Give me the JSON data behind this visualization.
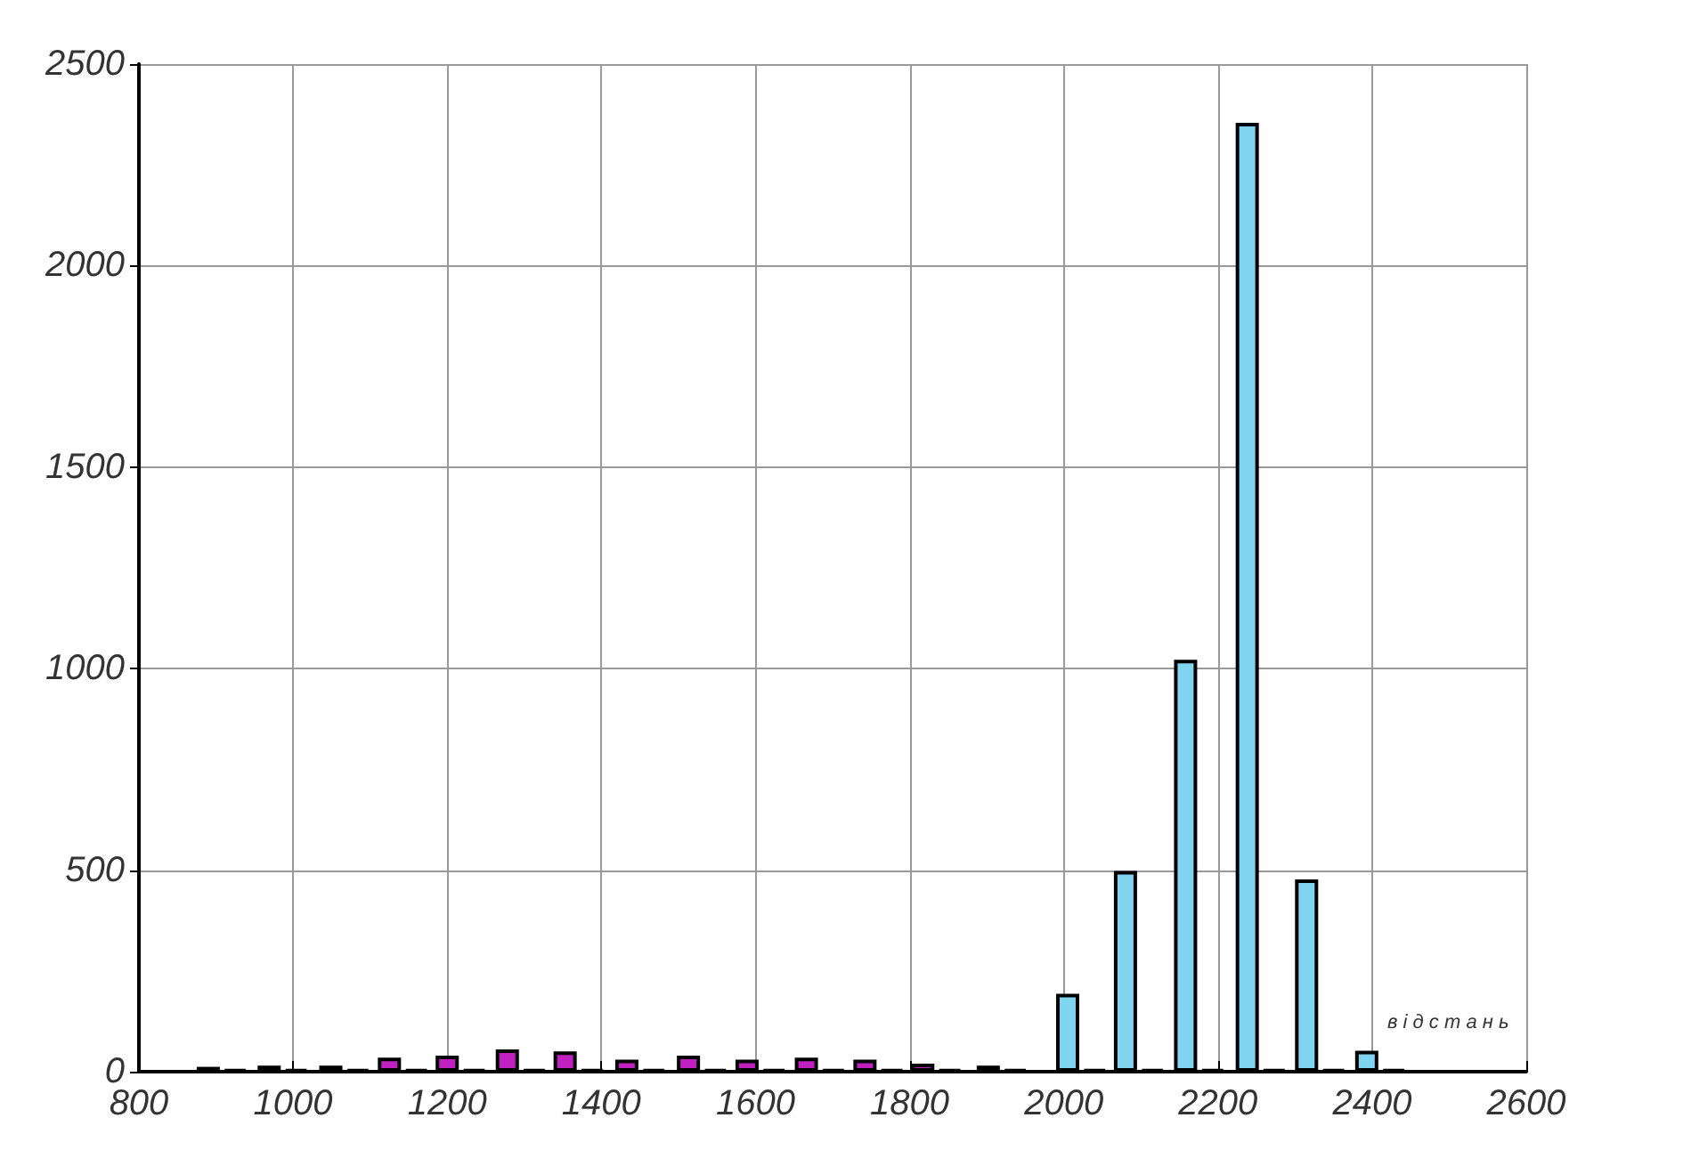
{
  "chart_data": {
    "type": "bar",
    "xlabel": "в і д с т а н ь",
    "x": [
      890,
      925,
      969,
      1004,
      1049,
      1084,
      1125,
      1160,
      1200,
      1235,
      1278,
      1313,
      1353,
      1388,
      1433,
      1468,
      1513,
      1548,
      1589,
      1624,
      1666,
      1701,
      1742,
      1777,
      1817,
      1852,
      1902,
      1937,
      2005,
      2040,
      2080,
      2115,
      2158,
      2193,
      2238,
      2273,
      2315,
      2350,
      2393,
      2428
    ],
    "values": [
      12,
      5,
      15,
      5,
      15,
      5,
      35,
      5,
      40,
      5,
      55,
      5,
      50,
      5,
      30,
      5,
      40,
      5,
      30,
      5,
      35,
      5,
      30,
      5,
      20,
      5,
      15,
      5,
      193,
      5,
      498,
      5,
      1022,
      5,
      2354,
      5,
      477,
      5,
      52,
      5
    ],
    "colors": [
      "#c020c0",
      "#000000",
      "#c020c0",
      "#000000",
      "#c020c0",
      "#000000",
      "#c020c0",
      "#000000",
      "#c020c0",
      "#000000",
      "#c020c0",
      "#000000",
      "#c020c0",
      "#000000",
      "#c020c0",
      "#000000",
      "#c020c0",
      "#000000",
      "#c020c0",
      "#000000",
      "#c020c0",
      "#000000",
      "#c020c0",
      "#000000",
      "#c020c0",
      "#000000",
      "#c020c0",
      "#000000",
      "#80d4f0",
      "#000000",
      "#80d4f0",
      "#000000",
      "#80d4f0",
      "#000000",
      "#80d4f0",
      "#000000",
      "#80d4f0",
      "#000000",
      "#80d4f0",
      "#000000"
    ],
    "xlim": [
      800,
      2600
    ],
    "xticks": [
      800,
      1000,
      1200,
      1400,
      1600,
      1800,
      2000,
      2200,
      2400,
      2600
    ],
    "ylim": [
      0,
      2500
    ],
    "yticks": [
      0,
      500,
      1000,
      1500,
      2000,
      2500
    ],
    "grid": true
  }
}
